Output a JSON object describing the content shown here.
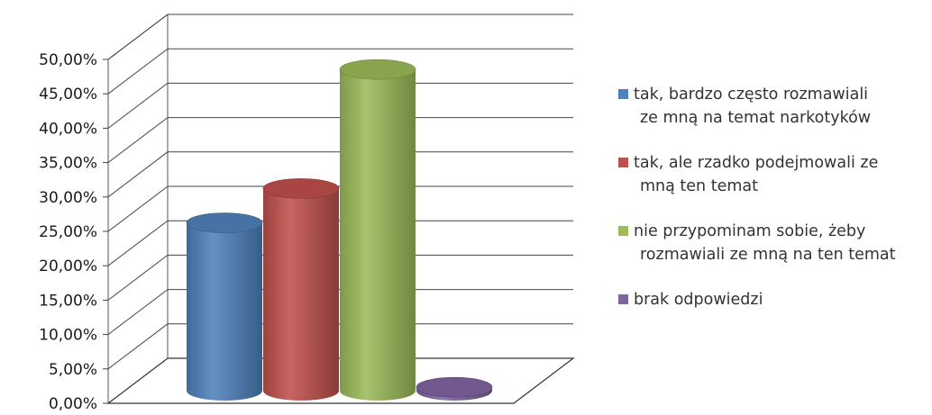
{
  "chart_data": {
    "type": "bar",
    "style": "3d-cylinder",
    "title": "",
    "xlabel": "",
    "ylabel": "",
    "ylim": [
      0,
      50
    ],
    "yticks": [
      "0,00%",
      "5,00%",
      "10,00%",
      "15,00%",
      "20,00%",
      "25,00%",
      "30,00%",
      "35,00%",
      "40,00%",
      "45,00%",
      "50,00%"
    ],
    "grid": true,
    "legend_position": "right",
    "series": [
      {
        "name_lines": [
          "tak, bardzo często rozmawiali",
          "ze mną na temat narkotyków"
        ],
        "value": 24.4,
        "color": "#4f81bd"
      },
      {
        "name_lines": [
          "tak, ale rzadko podejmowali ze",
          "mną ten temat"
        ],
        "value": 29.4,
        "color": "#c0504d"
      },
      {
        "name_lines": [
          "nie przypominam sobie, żeby",
          "rozmawiali ze mną na ten temat"
        ],
        "value": 46.7,
        "color": "#9bbb59"
      },
      {
        "name_lines": [
          "brak odpowiedzi"
        ],
        "value": 0.5,
        "color": "#8064a2"
      }
    ]
  }
}
